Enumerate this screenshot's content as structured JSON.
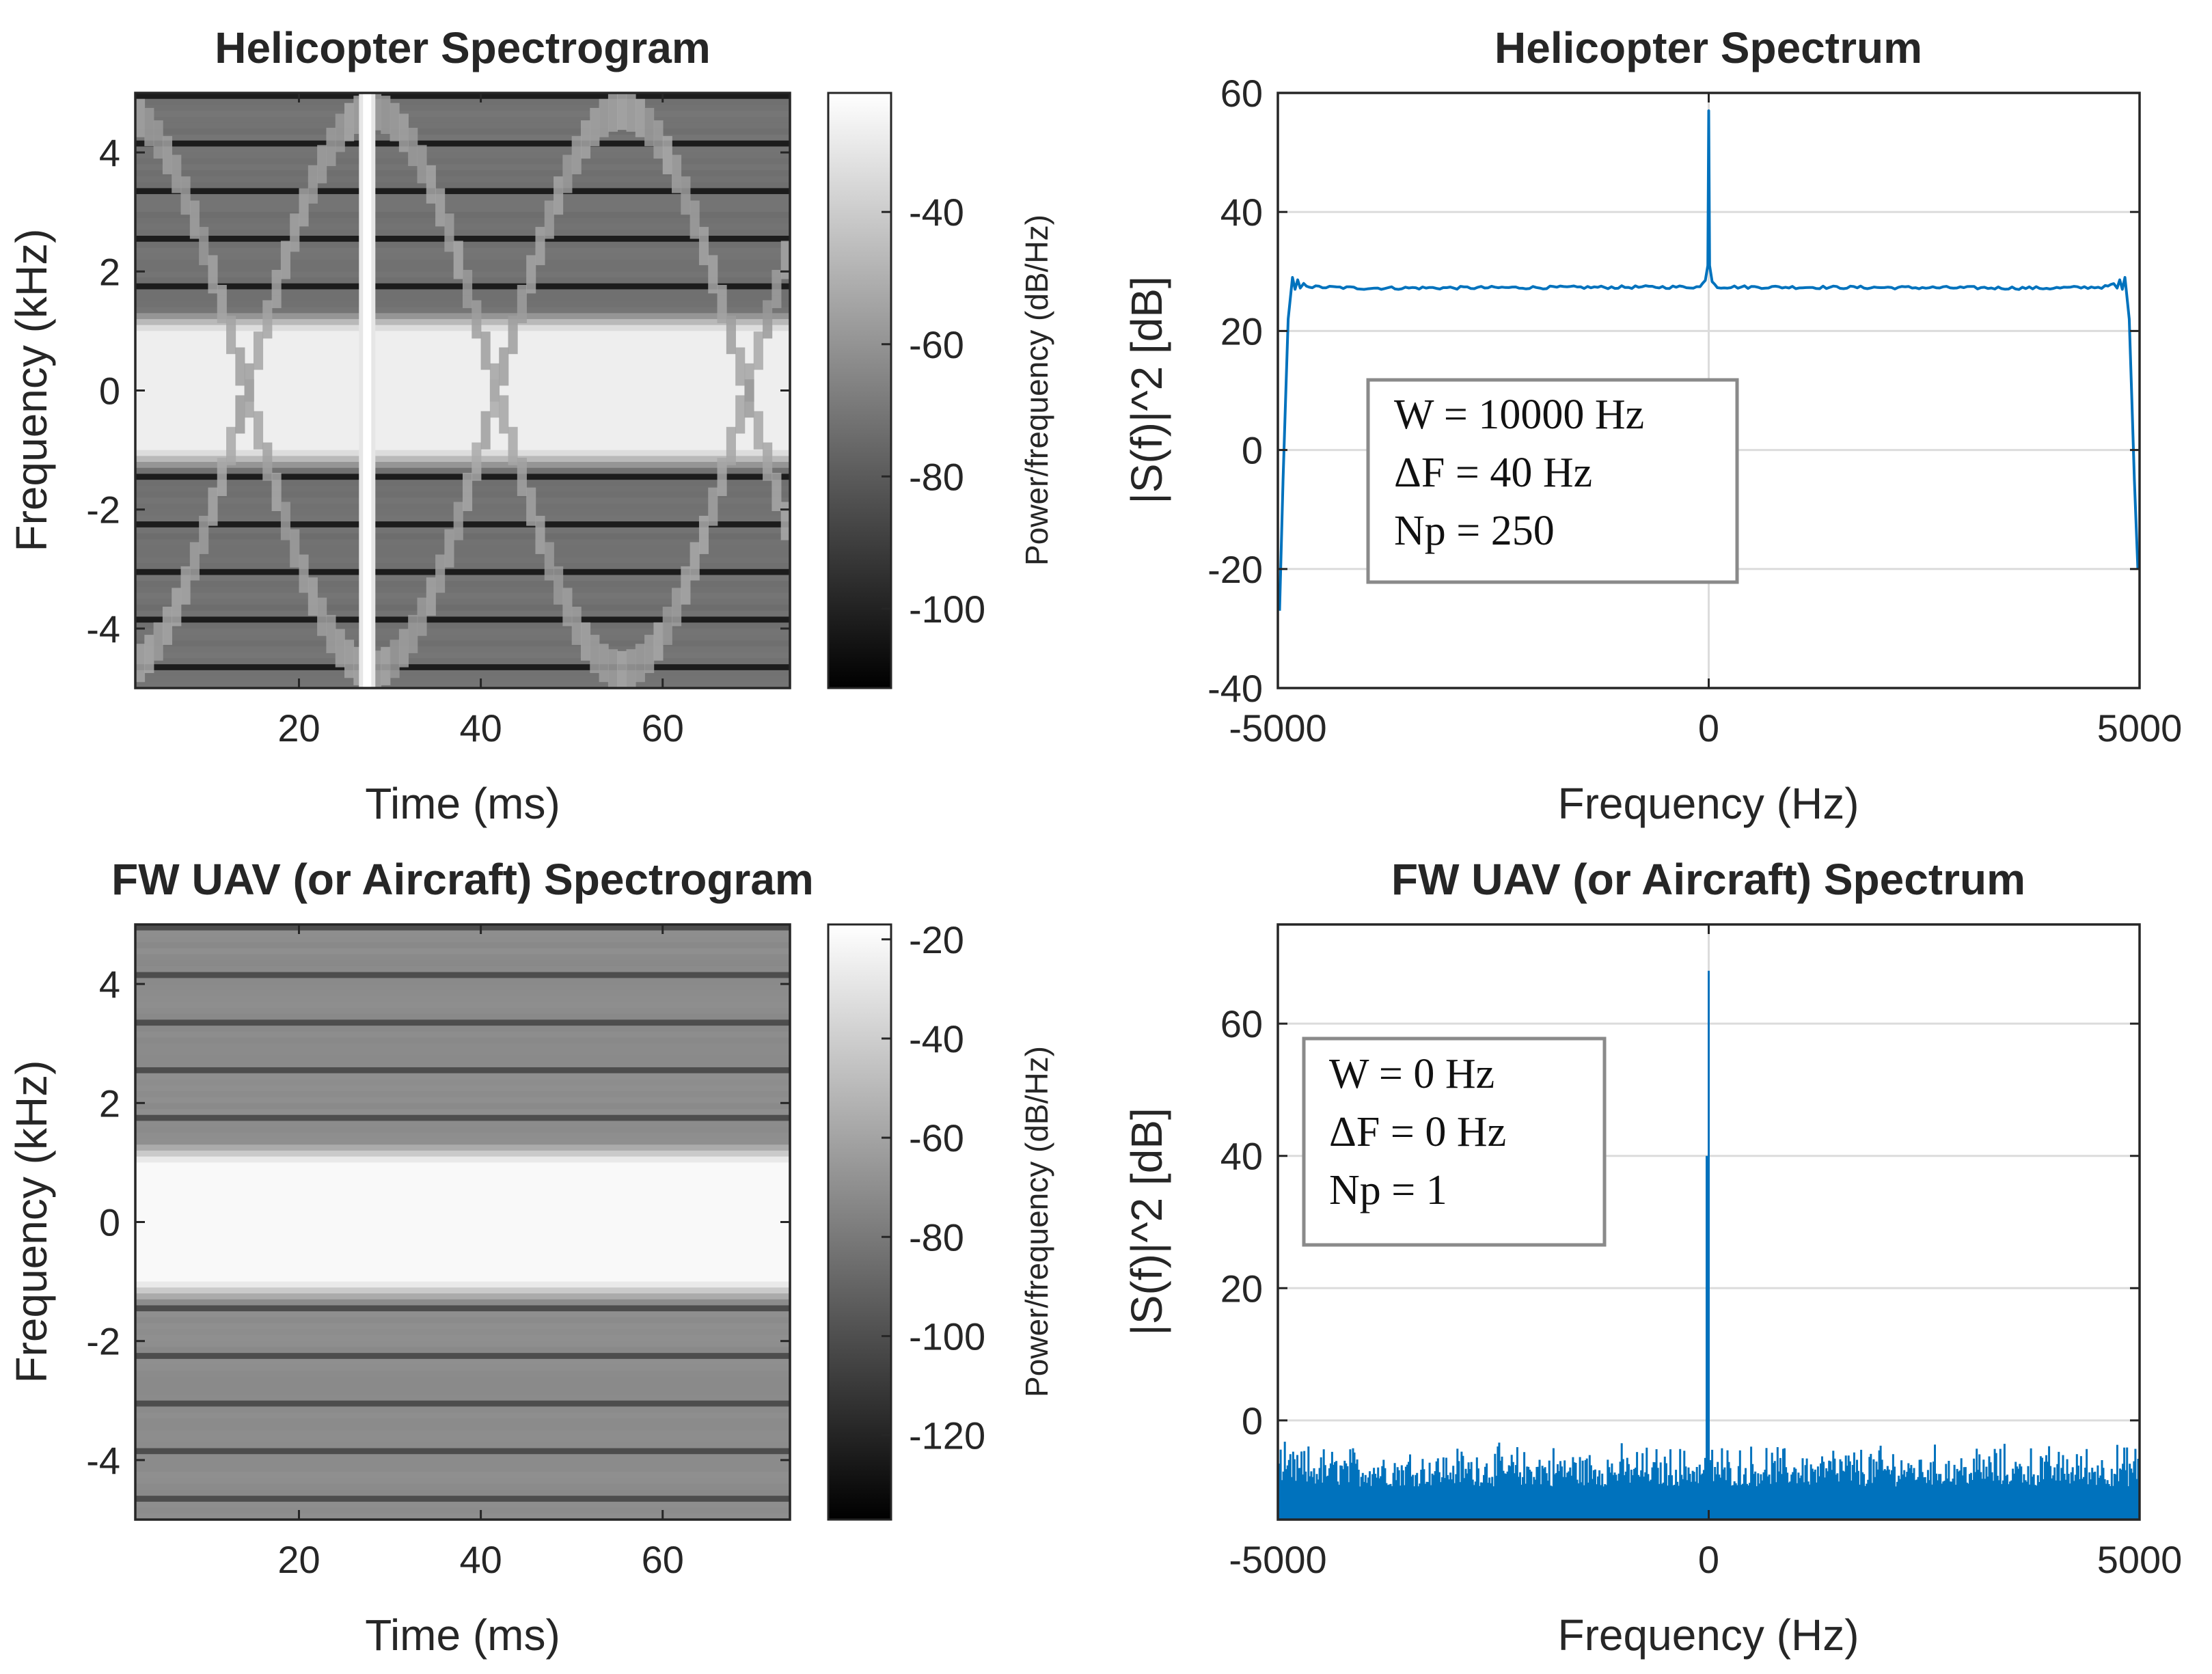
{
  "chart_data": [
    {
      "id": "heli-spectrogram",
      "type": "heatmap",
      "title": "Helicopter Spectrogram",
      "xlabel": "Time (ms)",
      "ylabel": "Frequency (kHz)",
      "xlim": [
        2,
        74
      ],
      "ylim": [
        -5,
        5
      ],
      "xticks": [
        20,
        40,
        60
      ],
      "yticks": [
        -4,
        -2,
        0,
        2,
        4
      ],
      "colorbar": {
        "label": "Power/frequency (dB/Hz)",
        "ticks": [
          -40,
          -60,
          -80,
          -100
        ],
        "range": [
          -112,
          -22
        ]
      },
      "flash_time_ms": 27.5,
      "band_half_width_khz": 1.0,
      "background_db": -72,
      "band_db": -28,
      "envelope_center_ms": 28,
      "envelope_amplitude_khz": 4.7,
      "envelope_period_ms": 55
    },
    {
      "id": "heli-spectrum",
      "type": "line",
      "title": "Helicopter Spectrum",
      "xlabel": "Frequency (Hz)",
      "ylabel": "|S(f)|^2 [dB]",
      "xlim": [
        -5000,
        5000
      ],
      "ylim": [
        -40,
        60
      ],
      "xticks": [
        -5000,
        0,
        5000
      ],
      "yticks": [
        -40,
        -20,
        0,
        20,
        40,
        60
      ],
      "color": "#0072BD",
      "series": [
        {
          "name": "spectrum",
          "x": [
            -4980,
            -4940,
            -4880,
            -4830,
            -4800,
            -4770,
            -4740,
            -4700,
            -4600,
            -4000,
            -2000,
            -100,
            -40,
            -10,
            0,
            10,
            40,
            100,
            2000,
            4000,
            4600,
            4700,
            4740,
            4770,
            4800,
            4830,
            4880,
            4940,
            4980
          ],
          "y": [
            -27,
            -5,
            22,
            29,
            27,
            28.6,
            27.2,
            27.8,
            27.4,
            27.2,
            27.3,
            27.4,
            28.5,
            31,
            57,
            31,
            28.5,
            27.4,
            27.3,
            27.2,
            27.4,
            27.8,
            27.2,
            28.6,
            27,
            29,
            22,
            -5,
            -20
          ]
        }
      ],
      "info_box": [
        "W = 10000 Hz",
        "ΔF = 40 Hz",
        "Np = 250"
      ]
    },
    {
      "id": "fw-spectrogram",
      "type": "heatmap",
      "title": "FW UAV (or Aircraft) Spectrogram",
      "xlabel": "Time (ms)",
      "ylabel": "Frequency (kHz)",
      "xlim": [
        2,
        74
      ],
      "ylim": [
        -5,
        5
      ],
      "xticks": [
        20,
        40,
        60
      ],
      "yticks": [
        -4,
        -2,
        0,
        2,
        4
      ],
      "colorbar": {
        "label": "Power/frequency (dB/Hz)",
        "ticks": [
          -20,
          -40,
          -60,
          -80,
          -100,
          -120
        ],
        "range": [
          -137,
          -17
        ]
      },
      "band_half_width_khz": 1.0,
      "background_db": -71,
      "band_db": -20
    },
    {
      "id": "fw-spectrum",
      "type": "line",
      "title": "FW UAV (or Aircraft) Spectrum",
      "xlabel": "Frequency (Hz)",
      "ylabel": "|S(f)|^2 [dB]",
      "xlim": [
        -5000,
        5000
      ],
      "ylim": [
        -15,
        75
      ],
      "xticks": [
        -5000,
        0,
        5000
      ],
      "yticks": [
        0,
        20,
        40,
        60
      ],
      "color": "#0072BD",
      "series": [
        {
          "name": "spectrum",
          "noise_floor_db": -15,
          "noise_peak_range_db": [
            -10,
            -3
          ],
          "peak_freq_hz": 0,
          "peak_db": 68
        }
      ],
      "info_box": [
        "W = 0 Hz",
        "ΔF = 0 Hz",
        "Np = 1"
      ]
    }
  ]
}
